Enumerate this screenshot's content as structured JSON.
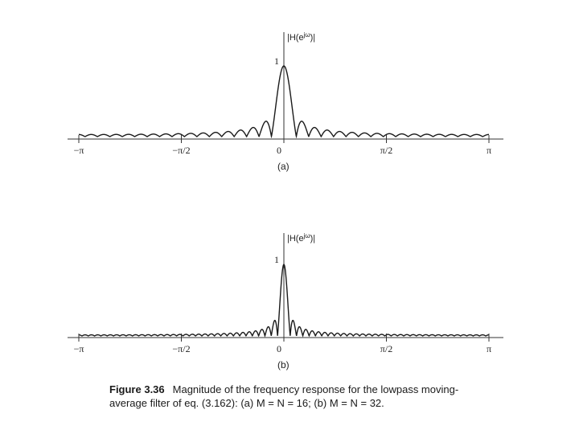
{
  "chart_data": [
    {
      "type": "line",
      "panel_label": "(a)",
      "ylabel_parts": {
        "base": "|H(e",
        "sup": "jω",
        "tail": ")|"
      },
      "y_tick_label": "1",
      "M": 16,
      "N": 16,
      "x_ticks": [
        {
          "value": -3.14159,
          "label": "−π"
        },
        {
          "value": -1.5708,
          "label": "−π/2"
        },
        {
          "value": 0,
          "label": "0"
        },
        {
          "value": 1.5708,
          "label": "π/2"
        },
        {
          "value": 3.14159,
          "label": "π"
        }
      ],
      "xlim": [
        -3.14159,
        3.14159
      ],
      "ylim": [
        0,
        1
      ]
    },
    {
      "type": "line",
      "panel_label": "(b)",
      "ylabel_parts": {
        "base": "|H(e",
        "sup": "jω",
        "tail": ")|"
      },
      "y_tick_label": "1",
      "M": 32,
      "N": 32,
      "x_ticks": [
        {
          "value": -3.14159,
          "label": "−π"
        },
        {
          "value": -1.5708,
          "label": "−π/2"
        },
        {
          "value": 0,
          "label": "0"
        },
        {
          "value": 1.5708,
          "label": "π/2"
        },
        {
          "value": 3.14159,
          "label": "π"
        }
      ],
      "xlim": [
        -3.14159,
        3.14159
      ],
      "ylim": [
        0,
        1
      ]
    }
  ],
  "caption": {
    "figure": "Figure 3.36",
    "line1": "Magnitude of the frequency response for the lowpass moving-",
    "line2": "average filter of eq. (3.162): (a) M = N = 16; (b) M = N = 32."
  },
  "colors": {
    "curve": "#1a1a1a",
    "axis": "#333333"
  }
}
